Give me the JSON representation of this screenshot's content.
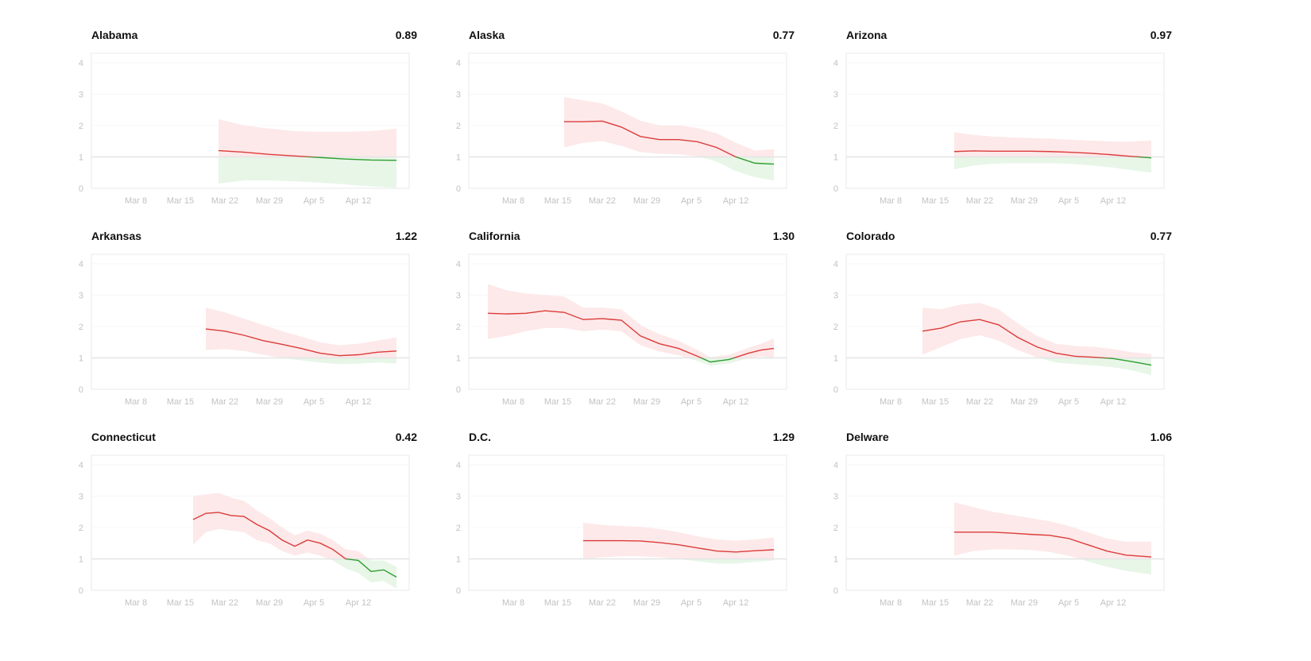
{
  "colors": {
    "above": "#dc3b3b",
    "below": "#2f9e2f",
    "above_band": "#fde9e9",
    "below_band": "#e8f6e8",
    "reference_line": "#e4e4e4",
    "frame": "#eaeaea",
    "gridline": "#f6f6f6",
    "tick_text": "#c2c2c2"
  },
  "chart_data": [
    {
      "type": "line",
      "title": "Alabama",
      "value_label": "0.89",
      "x_tick_labels": [
        "Mar 8",
        "Mar 15",
        "Mar 22",
        "Mar 29",
        "Apr 5",
        "Apr 12"
      ],
      "y_tick_labels": [
        "0",
        "1",
        "2",
        "3",
        "4"
      ],
      "ylim": [
        0,
        4.3
      ],
      "reference_line": 1,
      "series": [
        {
          "x": [
            "Mar 21",
            "Mar 25",
            "Mar 29",
            "Apr 2",
            "Apr 6",
            "Apr 10",
            "Apr 14",
            "Apr 18"
          ],
          "y": [
            1.2,
            1.15,
            1.08,
            1.03,
            0.98,
            0.93,
            0.9,
            0.89
          ],
          "lower": [
            0.15,
            0.25,
            0.25,
            0.22,
            0.18,
            0.12,
            0.06,
            0.02
          ],
          "upper": [
            2.2,
            2.0,
            1.9,
            1.82,
            1.8,
            1.8,
            1.82,
            1.9
          ]
        }
      ]
    },
    {
      "type": "line",
      "title": "Alaska",
      "value_label": "0.77",
      "x_tick_labels": [
        "Mar 8",
        "Mar 15",
        "Mar 22",
        "Mar 29",
        "Apr 5",
        "Apr 12"
      ],
      "y_tick_labels": [
        "0",
        "1",
        "2",
        "3",
        "4"
      ],
      "ylim": [
        0,
        4.3
      ],
      "reference_line": 1,
      "series": [
        {
          "x": [
            "Mar 16",
            "Mar 19",
            "Mar 22",
            "Mar 25",
            "Mar 28",
            "Mar 31",
            "Apr 3",
            "Apr 6",
            "Apr 9",
            "Apr 12",
            "Apr 15",
            "Apr 18"
          ],
          "y": [
            2.12,
            2.12,
            2.14,
            1.95,
            1.65,
            1.55,
            1.55,
            1.48,
            1.3,
            1.0,
            0.8,
            0.77
          ],
          "lower": [
            1.3,
            1.45,
            1.5,
            1.35,
            1.15,
            1.1,
            1.08,
            1.02,
            0.85,
            0.55,
            0.35,
            0.25
          ],
          "upper": [
            2.9,
            2.8,
            2.7,
            2.45,
            2.15,
            2.0,
            2.0,
            1.92,
            1.75,
            1.45,
            1.2,
            1.25
          ]
        }
      ]
    },
    {
      "type": "line",
      "title": "Arizona",
      "value_label": "0.97",
      "x_tick_labels": [
        "Mar 8",
        "Mar 15",
        "Mar 22",
        "Mar 29",
        "Apr 5",
        "Apr 12"
      ],
      "y_tick_labels": [
        "0",
        "1",
        "2",
        "3",
        "4"
      ],
      "ylim": [
        0,
        4.3
      ],
      "reference_line": 1,
      "series": [
        {
          "x": [
            "Mar 18",
            "Mar 21",
            "Mar 24",
            "Mar 27",
            "Mar 30",
            "Apr 2",
            "Apr 5",
            "Apr 8",
            "Apr 11",
            "Apr 14",
            "Apr 18"
          ],
          "y": [
            1.17,
            1.19,
            1.18,
            1.18,
            1.18,
            1.17,
            1.15,
            1.12,
            1.08,
            1.03,
            0.97
          ],
          "lower": [
            0.6,
            0.72,
            0.78,
            0.8,
            0.8,
            0.8,
            0.78,
            0.74,
            0.68,
            0.6,
            0.5
          ],
          "upper": [
            1.78,
            1.7,
            1.65,
            1.62,
            1.6,
            1.58,
            1.55,
            1.52,
            1.5,
            1.48,
            1.52
          ]
        }
      ]
    },
    {
      "type": "line",
      "title": "Arkansas",
      "value_label": "1.22",
      "x_tick_labels": [
        "Mar 8",
        "Mar 15",
        "Mar 22",
        "Mar 29",
        "Apr 5",
        "Apr 12"
      ],
      "y_tick_labels": [
        "0",
        "1",
        "2",
        "3",
        "4"
      ],
      "ylim": [
        0,
        4.3
      ],
      "reference_line": 1,
      "series": [
        {
          "x": [
            "Mar 19",
            "Mar 22",
            "Mar 25",
            "Mar 28",
            "Mar 31",
            "Apr 3",
            "Apr 6",
            "Apr 9",
            "Apr 12",
            "Apr 15",
            "Apr 18"
          ],
          "y": [
            1.92,
            1.85,
            1.72,
            1.55,
            1.43,
            1.3,
            1.15,
            1.07,
            1.1,
            1.18,
            1.22
          ],
          "lower": [
            1.25,
            1.28,
            1.22,
            1.1,
            1.0,
            0.92,
            0.85,
            0.8,
            0.82,
            0.85,
            0.82
          ],
          "upper": [
            2.6,
            2.45,
            2.25,
            2.05,
            1.85,
            1.68,
            1.5,
            1.4,
            1.45,
            1.55,
            1.65
          ]
        }
      ]
    },
    {
      "type": "line",
      "title": "California",
      "value_label": "1.30",
      "x_tick_labels": [
        "Mar 8",
        "Mar 15",
        "Mar 22",
        "Mar 29",
        "Apr 5",
        "Apr 12"
      ],
      "y_tick_labels": [
        "0",
        "1",
        "2",
        "3",
        "4"
      ],
      "ylim": [
        0,
        4.3
      ],
      "reference_line": 1,
      "series": [
        {
          "x": [
            "Mar 4",
            "Mar 7",
            "Mar 10",
            "Mar 13",
            "Mar 16",
            "Mar 19",
            "Mar 22",
            "Mar 25",
            "Mar 28",
            "Mar 31",
            "Apr 3",
            "Apr 6",
            "Apr 8",
            "Apr 11",
            "Apr 14",
            "Apr 16",
            "Apr 18"
          ],
          "y": [
            2.42,
            2.4,
            2.42,
            2.5,
            2.45,
            2.22,
            2.25,
            2.2,
            1.7,
            1.45,
            1.3,
            1.05,
            0.87,
            0.95,
            1.15,
            1.25,
            1.3
          ],
          "lower": [
            1.6,
            1.7,
            1.85,
            1.95,
            1.95,
            1.85,
            1.9,
            1.85,
            1.4,
            1.2,
            1.08,
            0.9,
            0.75,
            0.82,
            1.0,
            1.05,
            1.0
          ],
          "upper": [
            3.35,
            3.15,
            3.05,
            3.0,
            2.95,
            2.6,
            2.6,
            2.55,
            2.05,
            1.75,
            1.55,
            1.25,
            1.02,
            1.1,
            1.32,
            1.45,
            1.62
          ]
        }
      ]
    },
    {
      "type": "line",
      "title": "Colorado",
      "value_label": "0.77",
      "x_tick_labels": [
        "Mar 8",
        "Mar 15",
        "Mar 22",
        "Mar 29",
        "Apr 5",
        "Apr 12"
      ],
      "y_tick_labels": [
        "0",
        "1",
        "2",
        "3",
        "4"
      ],
      "ylim": [
        0,
        4.3
      ],
      "reference_line": 1,
      "series": [
        {
          "x": [
            "Mar 13",
            "Mar 16",
            "Mar 19",
            "Mar 22",
            "Mar 25",
            "Mar 28",
            "Mar 31",
            "Apr 3",
            "Apr 6",
            "Apr 9",
            "Apr 12",
            "Apr 15",
            "Apr 18"
          ],
          "y": [
            1.85,
            1.95,
            2.15,
            2.22,
            2.05,
            1.65,
            1.35,
            1.15,
            1.05,
            1.02,
            0.98,
            0.88,
            0.77
          ],
          "lower": [
            1.1,
            1.35,
            1.6,
            1.72,
            1.55,
            1.25,
            1.02,
            0.85,
            0.8,
            0.76,
            0.7,
            0.6,
            0.45
          ],
          "upper": [
            2.6,
            2.55,
            2.7,
            2.75,
            2.55,
            2.1,
            1.7,
            1.45,
            1.38,
            1.35,
            1.28,
            1.18,
            1.12
          ]
        }
      ]
    },
    {
      "type": "line",
      "title": "Connecticut",
      "value_label": "0.42",
      "x_tick_labels": [
        "Mar 8",
        "Mar 15",
        "Mar 22",
        "Mar 29",
        "Apr 5",
        "Apr 12"
      ],
      "y_tick_labels": [
        "0",
        "1",
        "2",
        "3",
        "4"
      ],
      "ylim": [
        0,
        4.3
      ],
      "reference_line": 1,
      "series": [
        {
          "x": [
            "Mar 17",
            "Mar 19",
            "Mar 21",
            "Mar 23",
            "Mar 25",
            "Mar 27",
            "Mar 29",
            "Mar 31",
            "Apr 2",
            "Apr 4",
            "Apr 6",
            "Apr 8",
            "Apr 10",
            "Apr 12",
            "Apr 14",
            "Apr 16",
            "Apr 18"
          ],
          "y": [
            2.25,
            2.45,
            2.48,
            2.38,
            2.35,
            2.1,
            1.9,
            1.6,
            1.4,
            1.6,
            1.5,
            1.3,
            1.0,
            0.95,
            0.6,
            0.65,
            0.42
          ],
          "lower": [
            1.45,
            1.85,
            1.95,
            1.9,
            1.85,
            1.6,
            1.5,
            1.25,
            1.1,
            1.2,
            1.1,
            0.95,
            0.7,
            0.55,
            0.25,
            0.3,
            0.05
          ],
          "upper": [
            3.0,
            3.05,
            3.1,
            2.95,
            2.85,
            2.55,
            2.3,
            2.0,
            1.75,
            1.9,
            1.8,
            1.6,
            1.3,
            1.25,
            0.95,
            0.95,
            0.75
          ]
        }
      ]
    },
    {
      "type": "line",
      "title": "D.C.",
      "value_label": "1.29",
      "x_tick_labels": [
        "Mar 8",
        "Mar 15",
        "Mar 22",
        "Mar 29",
        "Apr 5",
        "Apr 12"
      ],
      "y_tick_labels": [
        "0",
        "1",
        "2",
        "3",
        "4"
      ],
      "ylim": [
        0,
        4.3
      ],
      "reference_line": 1,
      "series": [
        {
          "x": [
            "Mar 19",
            "Mar 22",
            "Mar 25",
            "Mar 28",
            "Mar 31",
            "Apr 3",
            "Apr 6",
            "Apr 9",
            "Apr 12",
            "Apr 15",
            "Apr 18"
          ],
          "y": [
            1.58,
            1.58,
            1.58,
            1.57,
            1.52,
            1.45,
            1.35,
            1.25,
            1.22,
            1.26,
            1.29
          ],
          "lower": [
            1.0,
            1.05,
            1.08,
            1.08,
            1.05,
            1.0,
            0.92,
            0.85,
            0.85,
            0.9,
            0.95
          ],
          "upper": [
            2.15,
            2.08,
            2.05,
            2.02,
            1.95,
            1.85,
            1.72,
            1.62,
            1.58,
            1.62,
            1.68
          ]
        }
      ]
    },
    {
      "type": "line",
      "title": "Delware",
      "value_label": "1.06",
      "x_tick_labels": [
        "Mar 8",
        "Mar 15",
        "Mar 22",
        "Mar 29",
        "Apr 5",
        "Apr 12"
      ],
      "y_tick_labels": [
        "0",
        "1",
        "2",
        "3",
        "4"
      ],
      "ylim": [
        0,
        4.3
      ],
      "reference_line": 1,
      "series": [
        {
          "x": [
            "Mar 18",
            "Mar 21",
            "Mar 24",
            "Mar 27",
            "Mar 30",
            "Apr 2",
            "Apr 5",
            "Apr 8",
            "Apr 11",
            "Apr 14",
            "Apr 18"
          ],
          "y": [
            1.85,
            1.85,
            1.85,
            1.82,
            1.78,
            1.75,
            1.65,
            1.45,
            1.25,
            1.12,
            1.06
          ],
          "lower": [
            1.1,
            1.25,
            1.3,
            1.3,
            1.28,
            1.22,
            1.1,
            0.92,
            0.75,
            0.62,
            0.5
          ],
          "upper": [
            2.8,
            2.65,
            2.5,
            2.4,
            2.3,
            2.2,
            2.05,
            1.85,
            1.65,
            1.55,
            1.55
          ]
        }
      ]
    }
  ]
}
